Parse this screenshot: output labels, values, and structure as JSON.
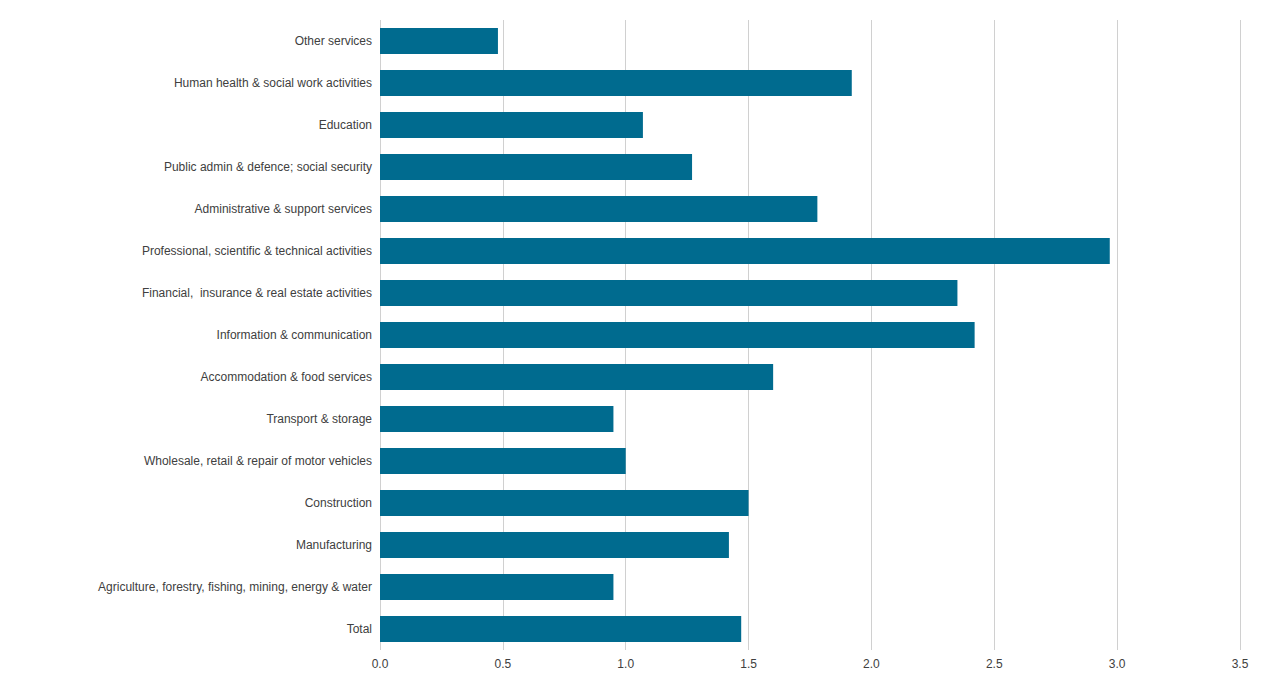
{
  "chart_data": {
    "type": "bar",
    "orientation": "horizontal",
    "categories": [
      "Total",
      "Agriculture, forestry, fishing, mining, energy & water",
      "Manufacturing",
      "Construction",
      "Wholesale, retail & repair of motor vehicles",
      "Transport & storage",
      "Accommodation & food services",
      "Information & communication",
      "Financial,  insurance & real estate activities",
      "Professional, scientific & technical activities",
      "Administrative & support services",
      "Public admin & defence; social security",
      "Education",
      "Human health & social work activities",
      "Other services"
    ],
    "values": [
      1.47,
      0.95,
      1.42,
      1.5,
      1.0,
      0.95,
      1.6,
      2.42,
      2.35,
      2.97,
      1.78,
      1.27,
      1.07,
      1.92,
      0.48
    ],
    "color": "#006b8f",
    "xlim": [
      0,
      3.5
    ],
    "xticks": [
      {
        "value": 0,
        "label": "0.0"
      },
      0.5,
      {
        "value": 1,
        "label": "1.0"
      },
      1.5,
      {
        "value": 2,
        "label": "2.0"
      },
      2.5,
      {
        "value": 3,
        "label": "3.0"
      },
      3.5
    ],
    "grid": true
  }
}
